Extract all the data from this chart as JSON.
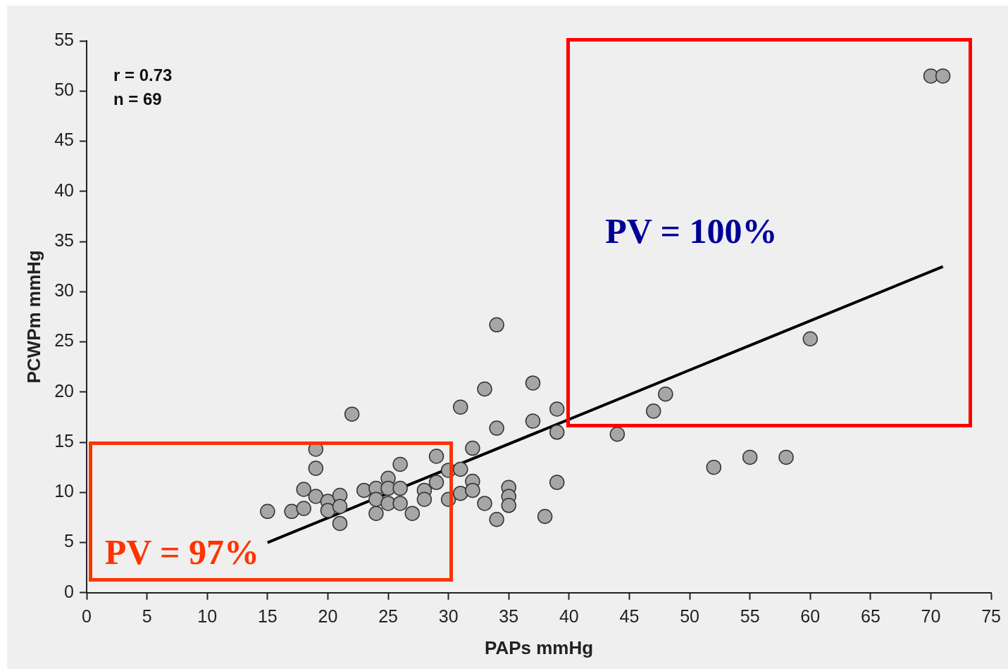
{
  "chart_data": {
    "type": "scatter",
    "xlabel": "PAPs mmHg",
    "ylabel": "PCWPm mmHg",
    "xlim": [
      0,
      75
    ],
    "xticks": [
      0,
      5,
      10,
      15,
      20,
      25,
      30,
      35,
      40,
      45,
      50,
      55,
      60,
      65,
      70,
      75
    ],
    "ylim": [
      0,
      55
    ],
    "yticks": [
      0,
      5,
      10,
      15,
      20,
      25,
      30,
      35,
      40,
      45,
      50,
      55
    ],
    "grid": false,
    "legend": false,
    "marker": "circle",
    "annotations": [
      "r = 0.73",
      "n = 69",
      "PV = 97%",
      "PV = 100%"
    ],
    "series": [
      {
        "color": "#a6a6a6",
        "x": [
          15,
          17,
          18,
          18,
          19,
          19,
          19,
          20,
          20,
          21,
          21,
          21,
          22,
          23,
          24,
          24,
          24,
          25,
          25,
          25,
          26,
          26,
          26,
          27,
          28,
          28,
          29,
          29,
          30,
          30,
          31,
          31,
          31,
          32,
          32,
          32,
          33,
          33,
          34,
          34,
          34,
          35,
          35,
          35,
          37,
          37,
          38,
          39,
          39,
          39,
          44,
          47,
          48,
          52,
          55,
          58,
          60,
          70,
          71
        ],
        "values": [
          8.1,
          8.1,
          8.4,
          10.3,
          14.3,
          12.4,
          9.6,
          9.1,
          8.2,
          9.7,
          6.9,
          8.6,
          17.8,
          10.2,
          10.4,
          7.9,
          9.3,
          11.4,
          8.9,
          10.4,
          12.8,
          10.4,
          8.9,
          7.9,
          10.2,
          9.3,
          13.6,
          11,
          9.3,
          12.2,
          18.5,
          12.3,
          9.9,
          14.4,
          11.1,
          10.2,
          20.3,
          8.9,
          26.7,
          16.4,
          7.3,
          10.5,
          9.6,
          8.7,
          20.9,
          17.1,
          7.6,
          18.3,
          16,
          11,
          15.8,
          18.1,
          19.8,
          12.5,
          13.5,
          13.5,
          25.3,
          51.5,
          51.5
        ]
      },
      {
        "type": "line",
        "color": "#000000",
        "marker": "none",
        "x": [
          15,
          71
        ],
        "values": [
          5,
          32.5
        ]
      }
    ]
  }
}
